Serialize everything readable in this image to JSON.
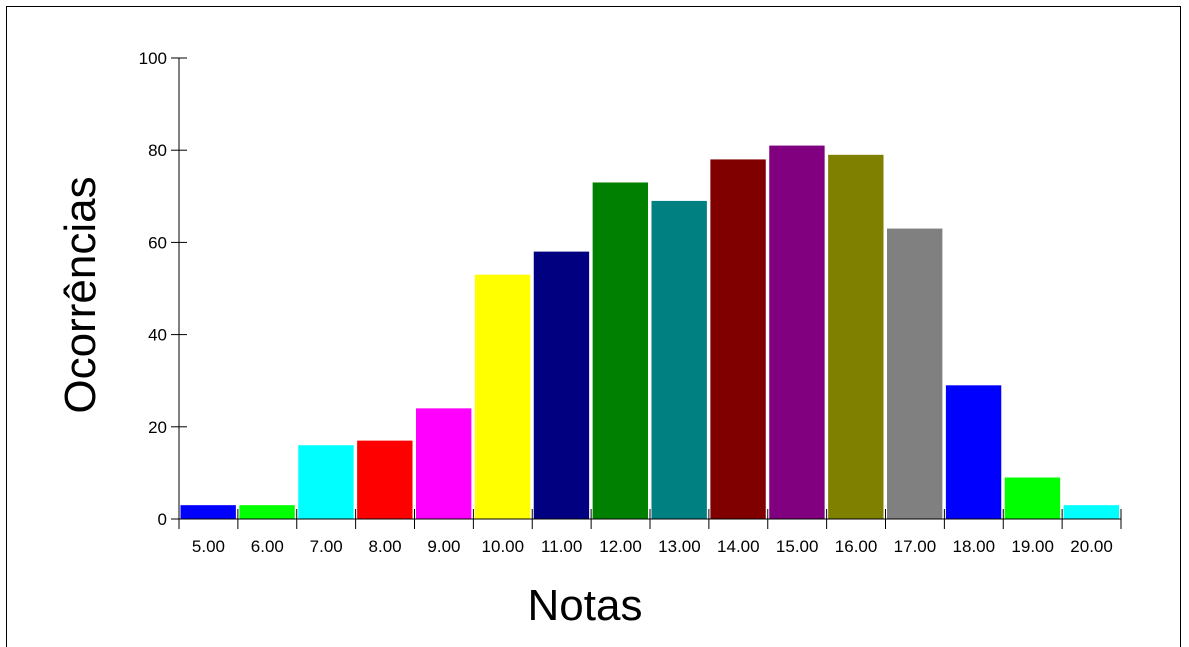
{
  "chart_data": {
    "type": "bar",
    "xlabel": "Notas",
    "ylabel": "Ocorrências",
    "ylim": [
      0,
      100
    ],
    "yticks": [
      "0",
      "20",
      "40",
      "60",
      "80",
      "100"
    ],
    "categories": [
      "5.00",
      "6.00",
      "7.00",
      "8.00",
      "9.00",
      "10.00",
      "11.00",
      "12.00",
      "13.00",
      "14.00",
      "15.00",
      "16.00",
      "17.00",
      "18.00",
      "19.00",
      "20.00"
    ],
    "values": [
      3,
      3,
      16,
      17,
      24,
      53,
      58,
      73,
      69,
      78,
      81,
      79,
      63,
      29,
      9,
      3
    ],
    "colors": [
      "#0000ff",
      "#00ff00",
      "#00ffff",
      "#ff0000",
      "#ff00ff",
      "#ffff00",
      "#000080",
      "#008000",
      "#008080",
      "#800000",
      "#800080",
      "#808000",
      "#808080",
      "#0000ff",
      "#00ff00",
      "#00ffff"
    ],
    "grid": false,
    "legend": "none"
  }
}
